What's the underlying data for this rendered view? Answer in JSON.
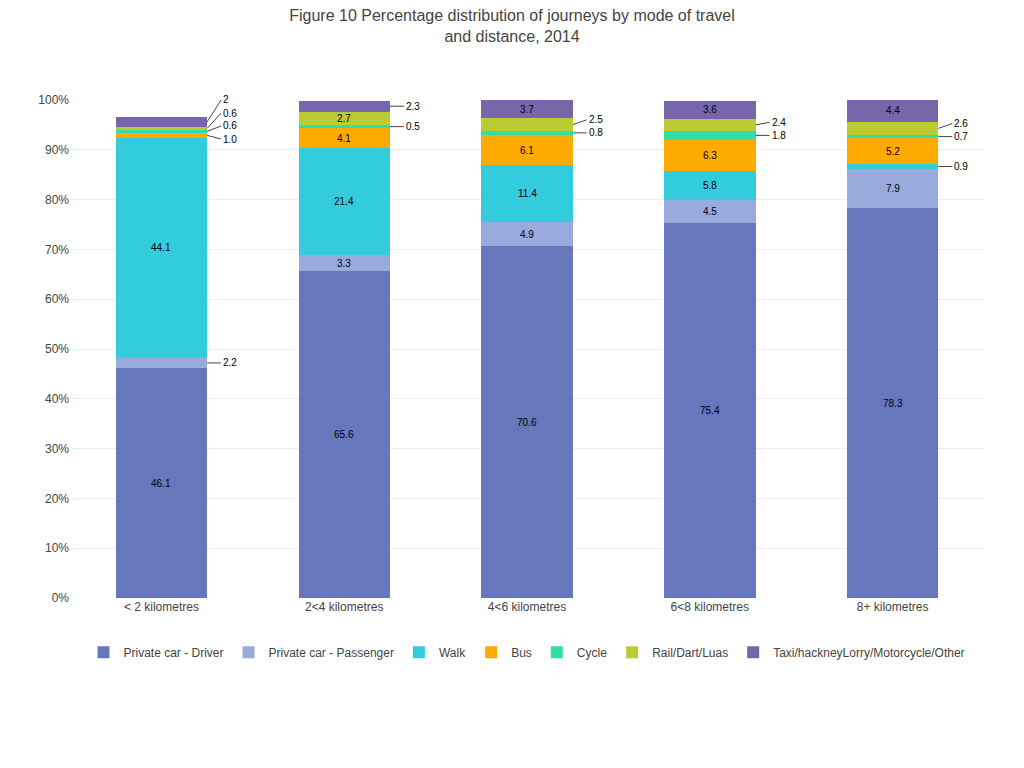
{
  "chart_data": {
    "type": "bar",
    "title": "Figure 10 Percentage distribution of journeys by mode of travel\nand distance, 2014",
    "categories": [
      "< 2 kilometres",
      "2<4 kilometres",
      "4<6 kilometres",
      "6<8 kilometres",
      "8+ kilometres"
    ],
    "series": [
      {
        "name": "Private car - Driver",
        "color": "#6677bb",
        "values": [
          46.1,
          65.6,
          70.6,
          75.4,
          78.3
        ]
      },
      {
        "name": "Private car - Passenger",
        "color": "#99aadd",
        "values": [
          2.2,
          3.3,
          4.9,
          4.5,
          7.9
        ]
      },
      {
        "name": "Walk",
        "color": "#33ccdd",
        "values": [
          44.1,
          21.4,
          11.4,
          5.8,
          0.9
        ]
      },
      {
        "name": "Bus",
        "color": "#ffaa00",
        "values": [
          1.0,
          4.1,
          6.1,
          6.3,
          5.2
        ],
        "value_labels": [
          "1.0",
          "4.1",
          "6.1",
          "6.3",
          "5.2"
        ]
      },
      {
        "name": "Cycle",
        "color": "#33ddaa",
        "values": [
          0.6,
          0.5,
          0.8,
          1.8,
          0.7
        ]
      },
      {
        "name": "Rail/Dart/Luas",
        "color": "#bbcc33",
        "values": [
          0.6,
          2.7,
          2.5,
          2.4,
          2.6
        ]
      },
      {
        "name": "Taxi/hackneyLorry/Motorcycle/Other",
        "color": "#7766aa",
        "values": [
          2.0,
          2.3,
          3.7,
          3.6,
          4.4
        ]
      }
    ],
    "ylim": [
      0,
      100
    ],
    "yticks": [
      {
        "value": 0,
        "label": "0%"
      },
      {
        "value": 10,
        "label": "10%"
      },
      {
        "value": 20,
        "label": "20%"
      },
      {
        "value": 30,
        "label": "30%"
      },
      {
        "value": 40,
        "label": "40%"
      },
      {
        "value": 50,
        "label": "50%"
      },
      {
        "value": 60,
        "label": "60%"
      },
      {
        "value": 70,
        "label": "70%"
      },
      {
        "value": 80,
        "label": "80%"
      },
      {
        "value": 90,
        "label": "90%"
      },
      {
        "value": 100,
        "label": "100%"
      }
    ],
    "grid": true,
    "stacked": true,
    "data_labels": true,
    "legend": "bottom"
  }
}
